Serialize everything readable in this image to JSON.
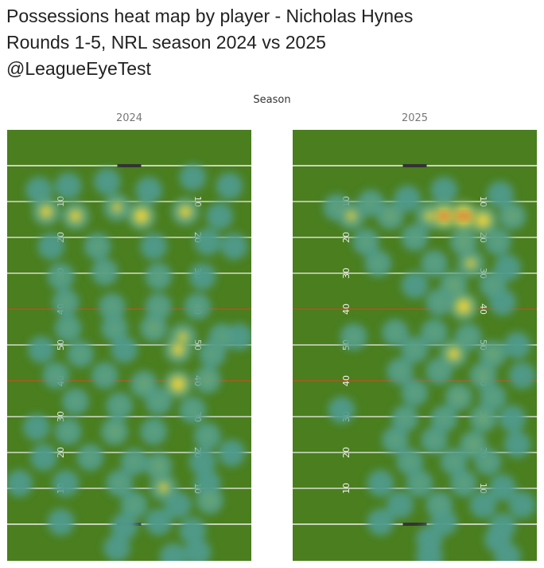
{
  "title": {
    "line1": "Possessions heat map by player - Nicholas Hynes",
    "line2": "Rounds 1-5, NRL season 2024 vs 2025",
    "line3": "@LeagueEyeTest"
  },
  "colors": {
    "grass": "#4a7e1e",
    "line_white": "#f2f2f2",
    "line_orange": "#c0521f",
    "heat_low": "#4f9a8a",
    "heat_mid": "#9fba4e",
    "heat_high": "#f2d43e",
    "heat_peak": "#c8573c"
  },
  "chart_data": {
    "type": "heatmap",
    "column_header": "Season",
    "field_markings": [
      "10",
      "20",
      "30",
      "40",
      "50",
      "40",
      "30",
      "20",
      "10"
    ],
    "facets": [
      {
        "label": "2024",
        "points": [
          [
            0.13,
            0.14,
            0.5
          ],
          [
            0.25,
            0.13,
            0.5
          ],
          [
            0.41,
            0.12,
            0.5
          ],
          [
            0.58,
            0.14,
            0.5
          ],
          [
            0.76,
            0.11,
            0.5
          ],
          [
            0.91,
            0.13,
            0.4
          ],
          [
            0.16,
            0.19,
            0.9
          ],
          [
            0.28,
            0.2,
            0.9
          ],
          [
            0.45,
            0.18,
            0.8
          ],
          [
            0.55,
            0.2,
            1.0
          ],
          [
            0.73,
            0.19,
            0.9
          ],
          [
            0.87,
            0.2,
            0.5
          ],
          [
            0.18,
            0.27,
            0.5
          ],
          [
            0.37,
            0.27,
            0.6
          ],
          [
            0.6,
            0.27,
            0.5
          ],
          [
            0.82,
            0.26,
            0.5
          ],
          [
            0.93,
            0.27,
            0.4
          ],
          [
            0.22,
            0.34,
            0.6
          ],
          [
            0.4,
            0.33,
            0.6
          ],
          [
            0.62,
            0.34,
            0.6
          ],
          [
            0.8,
            0.34,
            0.5
          ],
          [
            0.24,
            0.4,
            0.6
          ],
          [
            0.43,
            0.41,
            0.6
          ],
          [
            0.62,
            0.41,
            0.6
          ],
          [
            0.78,
            0.41,
            0.6
          ],
          [
            0.25,
            0.46,
            0.6
          ],
          [
            0.44,
            0.46,
            0.6
          ],
          [
            0.6,
            0.46,
            0.7
          ],
          [
            0.72,
            0.48,
            0.8
          ],
          [
            0.88,
            0.48,
            0.6
          ],
          [
            0.14,
            0.51,
            0.5
          ],
          [
            0.3,
            0.52,
            0.6
          ],
          [
            0.48,
            0.51,
            0.5
          ],
          [
            0.7,
            0.51,
            0.9
          ],
          [
            0.84,
            0.52,
            0.6
          ],
          [
            0.95,
            0.48,
            0.4
          ],
          [
            0.2,
            0.57,
            0.6
          ],
          [
            0.4,
            0.57,
            0.6
          ],
          [
            0.56,
            0.59,
            0.7
          ],
          [
            0.7,
            0.59,
            1.0
          ],
          [
            0.82,
            0.58,
            0.7
          ],
          [
            0.28,
            0.63,
            0.6
          ],
          [
            0.46,
            0.64,
            0.6
          ],
          [
            0.62,
            0.63,
            0.6
          ],
          [
            0.76,
            0.65,
            0.6
          ],
          [
            0.12,
            0.69,
            0.5
          ],
          [
            0.25,
            0.7,
            0.6
          ],
          [
            0.44,
            0.7,
            0.7
          ],
          [
            0.6,
            0.7,
            0.6
          ],
          [
            0.82,
            0.71,
            0.6
          ],
          [
            0.15,
            0.76,
            0.5
          ],
          [
            0.34,
            0.76,
            0.6
          ],
          [
            0.52,
            0.77,
            0.6
          ],
          [
            0.62,
            0.78,
            0.7
          ],
          [
            0.8,
            0.77,
            0.5
          ],
          [
            0.92,
            0.75,
            0.4
          ],
          [
            0.05,
            0.82,
            0.4
          ],
          [
            0.24,
            0.82,
            0.5
          ],
          [
            0.46,
            0.82,
            0.6
          ],
          [
            0.64,
            0.83,
            0.8
          ],
          [
            0.82,
            0.82,
            0.5
          ],
          [
            0.52,
            0.87,
            0.6
          ],
          [
            0.7,
            0.87,
            0.5
          ],
          [
            0.83,
            0.86,
            0.7
          ],
          [
            0.22,
            0.91,
            0.4
          ],
          [
            0.48,
            0.92,
            0.5
          ],
          [
            0.62,
            0.91,
            0.5
          ],
          [
            0.76,
            0.93,
            0.5
          ],
          [
            0.45,
            0.97,
            0.4
          ],
          [
            0.68,
            0.99,
            0.4
          ],
          [
            0.78,
            0.98,
            0.4
          ]
        ]
      },
      {
        "label": "2025",
        "points": [
          [
            0.18,
            0.18,
            0.6
          ],
          [
            0.32,
            0.17,
            0.6
          ],
          [
            0.47,
            0.16,
            0.5
          ],
          [
            0.62,
            0.14,
            0.5
          ],
          [
            0.85,
            0.15,
            0.5
          ],
          [
            0.24,
            0.2,
            0.8
          ],
          [
            0.4,
            0.2,
            0.7
          ],
          [
            0.56,
            0.2,
            0.8
          ],
          [
            0.62,
            0.2,
            1.1
          ],
          [
            0.7,
            0.2,
            1.2
          ],
          [
            0.78,
            0.21,
            1.0
          ],
          [
            0.9,
            0.2,
            0.7
          ],
          [
            0.3,
            0.26,
            0.6
          ],
          [
            0.5,
            0.25,
            0.6
          ],
          [
            0.7,
            0.26,
            0.7
          ],
          [
            0.84,
            0.26,
            0.6
          ],
          [
            0.35,
            0.31,
            0.6
          ],
          [
            0.58,
            0.31,
            0.6
          ],
          [
            0.73,
            0.31,
            0.8
          ],
          [
            0.88,
            0.32,
            0.5
          ],
          [
            0.5,
            0.36,
            0.5
          ],
          [
            0.66,
            0.36,
            0.7
          ],
          [
            0.82,
            0.36,
            0.6
          ],
          [
            0.6,
            0.4,
            0.6
          ],
          [
            0.7,
            0.41,
            1.0
          ],
          [
            0.86,
            0.4,
            0.5
          ],
          [
            0.25,
            0.48,
            0.6
          ],
          [
            0.42,
            0.47,
            0.6
          ],
          [
            0.58,
            0.47,
            0.6
          ],
          [
            0.72,
            0.48,
            0.6
          ],
          [
            0.5,
            0.51,
            0.6
          ],
          [
            0.66,
            0.52,
            0.9
          ],
          [
            0.82,
            0.52,
            0.7
          ],
          [
            0.92,
            0.5,
            0.4
          ],
          [
            0.44,
            0.56,
            0.6
          ],
          [
            0.6,
            0.56,
            0.6
          ],
          [
            0.78,
            0.57,
            0.7
          ],
          [
            0.94,
            0.57,
            0.5
          ],
          [
            0.5,
            0.61,
            0.6
          ],
          [
            0.68,
            0.62,
            0.7
          ],
          [
            0.82,
            0.62,
            0.6
          ],
          [
            0.2,
            0.65,
            0.4
          ],
          [
            0.46,
            0.67,
            0.6
          ],
          [
            0.62,
            0.67,
            0.6
          ],
          [
            0.78,
            0.67,
            0.7
          ],
          [
            0.9,
            0.67,
            0.5
          ],
          [
            0.42,
            0.72,
            0.6
          ],
          [
            0.58,
            0.72,
            0.6
          ],
          [
            0.74,
            0.73,
            0.7
          ],
          [
            0.92,
            0.73,
            0.4
          ],
          [
            0.48,
            0.77,
            0.6
          ],
          [
            0.66,
            0.77,
            0.6
          ],
          [
            0.8,
            0.77,
            0.6
          ],
          [
            0.36,
            0.82,
            0.5
          ],
          [
            0.52,
            0.82,
            0.6
          ],
          [
            0.7,
            0.82,
            0.6
          ],
          [
            0.86,
            0.83,
            0.5
          ],
          [
            0.44,
            0.87,
            0.5
          ],
          [
            0.6,
            0.87,
            0.6
          ],
          [
            0.78,
            0.87,
            0.5
          ],
          [
            0.94,
            0.87,
            0.4
          ],
          [
            0.36,
            0.91,
            0.4
          ],
          [
            0.62,
            0.91,
            0.5
          ],
          [
            0.86,
            0.92,
            0.4
          ],
          [
            0.56,
            0.95,
            0.4
          ],
          [
            0.84,
            0.95,
            0.4
          ],
          [
            0.56,
            0.99,
            0.4
          ],
          [
            0.88,
            0.99,
            0.4
          ]
        ]
      }
    ]
  }
}
